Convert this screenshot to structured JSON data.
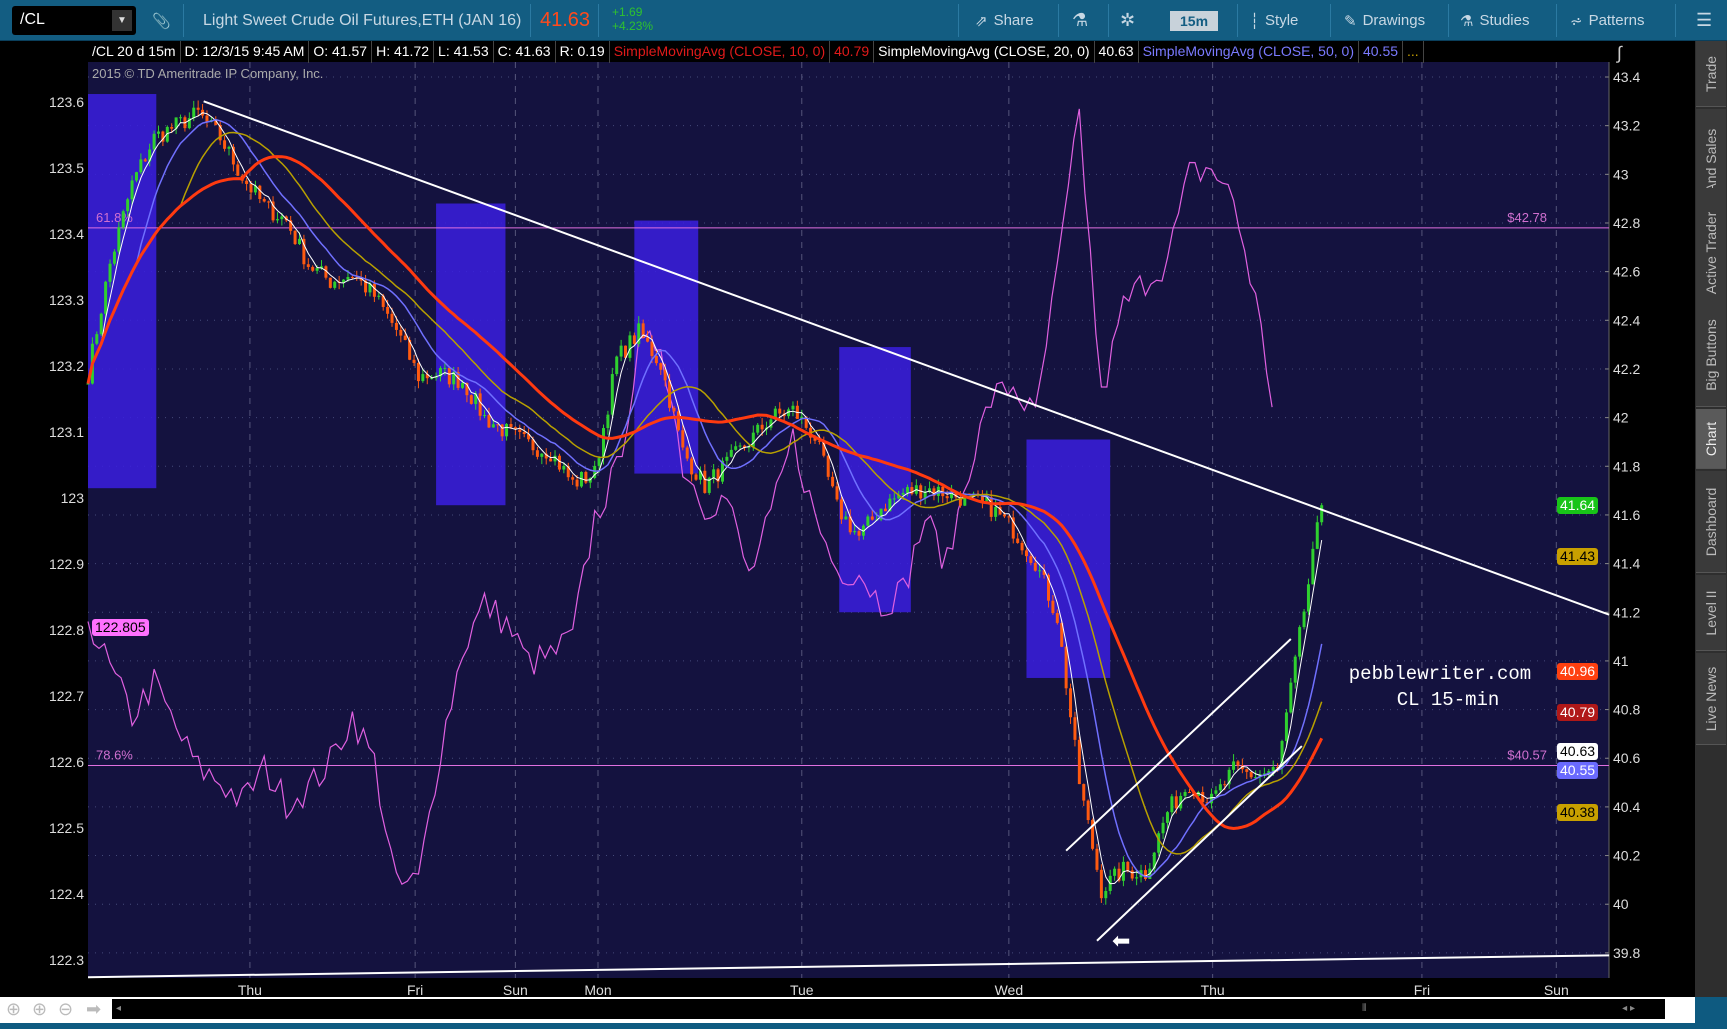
{
  "toolbar": {
    "symbol": "/CL",
    "description": "Light Sweet Crude Oil Futures,ETH (JAN 16)",
    "last": "41.63",
    "change": "+1.69",
    "change_pct": "+4.23%",
    "share": "Share",
    "timeframe": "15m",
    "style": "Style",
    "drawings": "Drawings",
    "studies": "Studies",
    "patterns": "Patterns"
  },
  "info_bar": {
    "spec": "/CL 20 d 15m",
    "date": "D: 12/3/15 9:45 AM",
    "open": "O: 41.57",
    "high": "H: 41.72",
    "low": "L: 41.53",
    "close": "C: 41.63",
    "range": "R: 0.19",
    "sma10": "SimpleMovingAvg (CLOSE, 10, 0)",
    "sma10_val": "40.79",
    "sma20": "SimpleMovingAvg (CLOSE, 20, 0)",
    "sma20_val": "40.63",
    "sma50": "SimpleMovingAvg (CLOSE, 50, 0)",
    "sma50_val": "40.55",
    "more": "..."
  },
  "copyright": "2015 © TD Ameritrade IP Company, Inc.",
  "watermark": {
    "line1": "pebblewriter.com",
    "line2": "CL 15-min"
  },
  "side_tabs": [
    "Trade",
    "Times And Sales",
    "Active Trader",
    "Big Buttons",
    "Chart",
    "Dashboard",
    "Level II",
    "Live News"
  ],
  "selected_tab": "Chart",
  "chart_data": {
    "type": "candlestick",
    "right_axis": {
      "ticks": [
        "43.4",
        "43.2",
        "43",
        "42.8",
        "42.6",
        "42.4",
        "42.2",
        "42",
        "41.8",
        "41.6",
        "41.4",
        "41.2",
        "41",
        "40.8",
        "40.6",
        "40.4",
        "40.2",
        "40",
        "39.8"
      ],
      "range": [
        39.8,
        43.4
      ]
    },
    "left_axis": {
      "ticks": [
        "123.6",
        "123.5",
        "123.4",
        "123.3",
        "123.2",
        "123.1",
        "123",
        "122.9",
        "122.8",
        "122.7",
        "122.6",
        "122.5",
        "122.4",
        "122.3"
      ],
      "range": [
        122.3,
        123.6
      ]
    },
    "x_labels": [
      {
        "label": "Thu",
        "i": 7.35
      },
      {
        "label": "Fri",
        "i": 14.85
      },
      {
        "label": "Sun",
        "i": 19.4
      },
      {
        "label": "Mon",
        "i": 23.15
      },
      {
        "label": "Tue",
        "i": 32.4
      },
      {
        "label": "Wed",
        "i": 41.8
      },
      {
        "label": "Thu",
        "i": 51.05
      },
      {
        "label": "Fri",
        "i": 60.55
      },
      {
        "label": "Sun",
        "i": 66.65
      }
    ],
    "price": [
      42.18,
      42.63,
      42.96,
      43.15,
      43.2,
      43.25,
      43.15,
      42.99,
      42.87,
      42.81,
      42.63,
      42.56,
      42.59,
      42.5,
      42.36,
      42.17,
      42.18,
      42.15,
      42.0,
      41.94,
      41.89,
      41.86,
      41.73,
      41.77,
      42.24,
      42.35,
      42.22,
      41.86,
      41.72,
      41.81,
      41.9,
      42.0,
      42.03,
      41.92,
      41.63,
      41.51,
      41.63,
      41.69,
      41.71,
      41.69,
      41.66,
      41.63,
      41.54,
      41.41,
      41.18,
      40.5,
      40.06,
      40.14,
      40.13,
      40.38,
      40.5,
      40.42,
      40.55,
      40.53,
      40.55,
      41.1,
      41.64
    ],
    "comparison": [
      122.82,
      122.74,
      122.67,
      122.72,
      122.65,
      122.59,
      122.57,
      122.54,
      122.59,
      122.54,
      122.56,
      122.6,
      122.67,
      122.6,
      122.41,
      122.42,
      122.62,
      122.77,
      122.84,
      122.81,
      122.75,
      122.76,
      122.79,
      122.97,
      123.04,
      123.22,
      123.24,
      123.05,
      122.99,
      123.0,
      122.88,
      122.97,
      123.09,
      122.97,
      122.89,
      122.89,
      122.84,
      122.86,
      122.97,
      122.9,
      123.05,
      123.15,
      123.17,
      123.12,
      123.34,
      123.58,
      123.15,
      123.29,
      123.33,
      123.36,
      123.49,
      123.5,
      123.45,
      123.3,
      123.1
    ],
    "comparison_last": "122.805",
    "fib_levels": [
      {
        "label": "61.8%",
        "price": 42.78,
        "price_label": "$42.78"
      },
      {
        "label": "78.6%",
        "price": 40.57,
        "price_label": "$40.57"
      }
    ],
    "highlight_zones": [
      {
        "i0": 0,
        "i1": 3.1,
        "top": 43.33,
        "bottom": 41.71
      },
      {
        "i0": 15.8,
        "i1": 18.95,
        "top": 42.88,
        "bottom": 41.64
      },
      {
        "i0": 24.8,
        "i1": 27.7,
        "top": 42.81,
        "bottom": 41.77
      },
      {
        "i0": 34.1,
        "i1": 37.35,
        "top": 42.29,
        "bottom": 41.2
      },
      {
        "i0": 42.6,
        "i1": 46.4,
        "top": 41.91,
        "bottom": 40.93
      }
    ],
    "trendlines": [
      {
        "i0": 5.25,
        "p0": 43.3,
        "i1": 69.05,
        "p1": 41.19
      },
      {
        "i0": 0,
        "p0": 39.7,
        "i1": 69.05,
        "p1": 39.79
      },
      {
        "i0": 44.4,
        "p0": 40.22,
        "i1": 54.6,
        "p1": 41.09
      },
      {
        "i0": 45.8,
        "p0": 39.85,
        "i1": 55.1,
        "p1": 40.65
      }
    ],
    "price_badges": [
      {
        "value": "41.64",
        "color": "#18c418",
        "text": "#fff"
      },
      {
        "value": "41.43",
        "color": "#c8a000",
        "text": "#000"
      },
      {
        "value": "40.96",
        "color": "#ff4010",
        "text": "#fff"
      },
      {
        "value": "40.79",
        "color": "#b01818",
        "text": "#fff"
      },
      {
        "value": "40.63",
        "color": "#ffffff",
        "text": "#000"
      },
      {
        "value": "40.55",
        "color": "#6a6aff",
        "text": "#fff"
      },
      {
        "value": "40.38",
        "color": "#c8a000",
        "text": "#000"
      }
    ],
    "colors": {
      "background": "#14123f",
      "zone": "#3a1fe0",
      "comparison": "#e060e0",
      "up": "#2fd02f",
      "down": "#ff5a10",
      "sma_white": "#ffffff",
      "sma_blue": "#7070ff",
      "sma_yellow": "#b8a000",
      "sma_red": "#ff3a10"
    }
  }
}
